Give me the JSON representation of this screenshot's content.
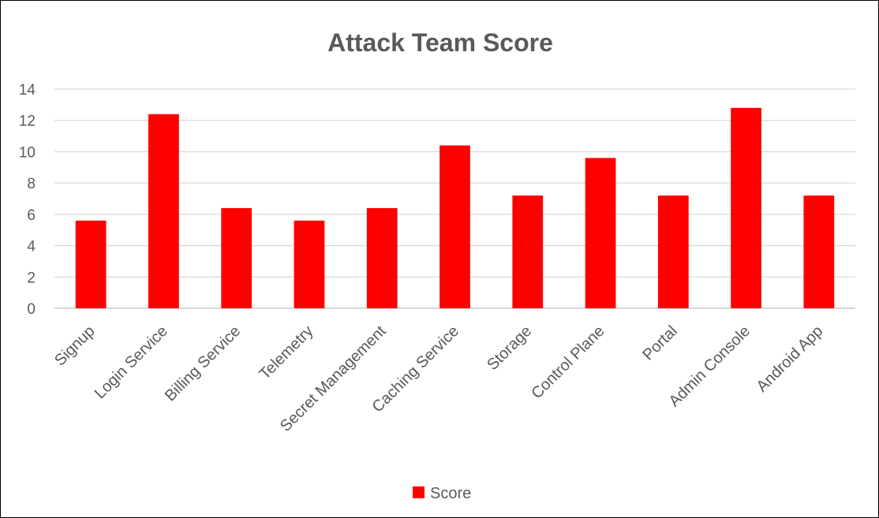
{
  "chart_data": {
    "type": "bar",
    "title": "Attack Team Score",
    "xlabel": "",
    "ylabel": "",
    "ylim": [
      0,
      14
    ],
    "yticks": [
      0,
      2,
      4,
      6,
      8,
      10,
      12,
      14
    ],
    "grid": true,
    "legend_position": "bottom",
    "categories": [
      "Signup",
      "Login Service",
      "Billing Service",
      "Telemetry",
      "Secret Management",
      "Caching Service",
      "Storage",
      "Control Plane",
      "Portal",
      "Admin Console",
      "Android App"
    ],
    "series": [
      {
        "name": "Score",
        "color": "#ff0000",
        "values": [
          5.6,
          12.4,
          6.4,
          5.6,
          6.4,
          10.4,
          7.2,
          9.6,
          7.2,
          12.8,
          7.2
        ]
      }
    ]
  }
}
